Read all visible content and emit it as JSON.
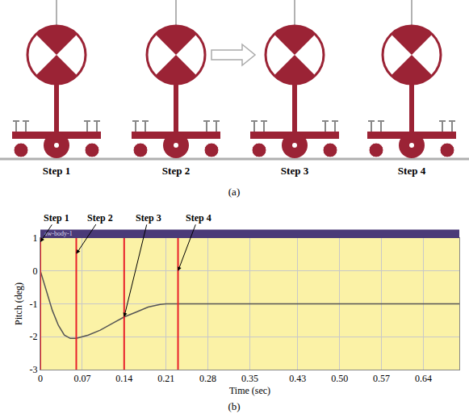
{
  "diagram": {
    "steps": [
      "Step 1",
      "Step 2",
      "Step 3",
      "Step 4"
    ],
    "caption": "(a)"
  },
  "chart_data": {
    "type": "line",
    "caption": "(b)",
    "header": "aw-body-1",
    "x_label": "Time (sec)",
    "y_label": "Pitch (deg)",
    "x": [
      0,
      0.01,
      0.02,
      0.03,
      0.04,
      0.05,
      0.06,
      0.08,
      0.1,
      0.12,
      0.14,
      0.16,
      0.18,
      0.2,
      0.21,
      0.22,
      0.3,
      0.4,
      0.5,
      0.6,
      0.7
    ],
    "values": [
      0,
      -0.6,
      -1.2,
      -1.65,
      -1.95,
      -2.05,
      -2.05,
      -1.95,
      -1.8,
      -1.6,
      -1.4,
      -1.25,
      -1.1,
      -1.02,
      -1.0,
      -1.0,
      -1.0,
      -1.0,
      -1.0,
      -1.0,
      -1.0
    ],
    "color": "#555555",
    "xlim": [
      0,
      0.7
    ],
    "ylim": [
      -3,
      1
    ],
    "xticks": [
      0,
      0.07,
      0.14,
      0.21,
      0.28,
      0.35,
      0.43,
      {
        "value": 0.5,
        "label": "0.50"
      },
      0.57,
      0.64
    ],
    "yticks": [
      1,
      0,
      -1,
      -2,
      -3
    ],
    "grid": true,
    "annotations": [
      {
        "text": "Step 1",
        "x": 0
      },
      {
        "text": "Step 2",
        "x": 0.06
      },
      {
        "text": "Step 3",
        "x": 0.14
      },
      {
        "text": "Step 4",
        "x": 0.23
      }
    ]
  }
}
